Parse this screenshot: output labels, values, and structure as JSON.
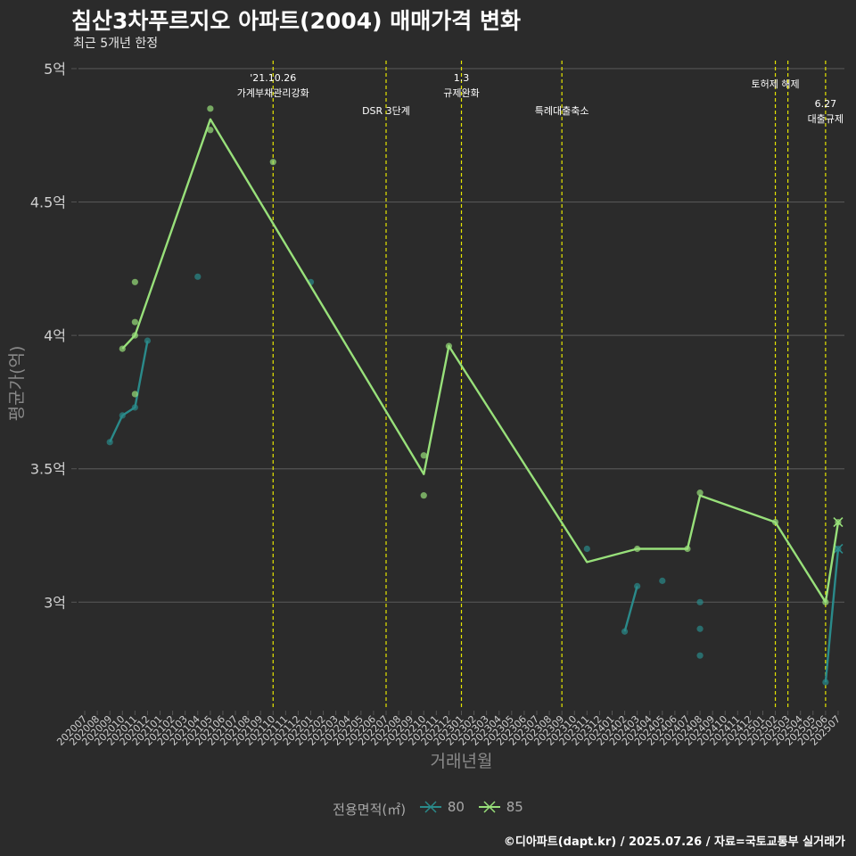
{
  "header": {
    "title": "침산3차푸르지오 아파트(2004) 매매가격 변화",
    "subtitle": "최근 5개년 한정"
  },
  "caption": "©디아파트(dapt.kr) / 2025.07.26 / 자료=국토교통부 실거래가",
  "colors": {
    "background": "#2b2b2b",
    "grid": "#555555",
    "tick_text": "#cfcfcf",
    "axis_title": "#8a8a8a",
    "event_line": "#e6e600",
    "series_80": "#2a8a8a",
    "series_85": "#98e07a"
  },
  "chart_data": {
    "type": "line",
    "title": "침산3차푸르지오 아파트(2004) 매매가격 변화",
    "subtitle": "최근 5개년 한정",
    "xlabel": "거래년월",
    "ylabel": "평균가(억)",
    "ylim": [
      2.6,
      5.05
    ],
    "yticks": [
      3,
      3.5,
      4,
      4.5,
      5
    ],
    "ytick_labels": [
      "3억",
      "3.5억",
      "4억",
      "4.5억",
      "5억"
    ],
    "x_months": [
      "202007",
      "202008",
      "202009",
      "202010",
      "202011",
      "202012",
      "202101",
      "202102",
      "202103",
      "202104",
      "202105",
      "202106",
      "202107",
      "202108",
      "202109",
      "202110",
      "202111",
      "202112",
      "202201",
      "202202",
      "202203",
      "202204",
      "202205",
      "202206",
      "202207",
      "202208",
      "202209",
      "202210",
      "202211",
      "202212",
      "202301",
      "202302",
      "202303",
      "202304",
      "202305",
      "202306",
      "202307",
      "202308",
      "202309",
      "202310",
      "202311",
      "202312",
      "202401",
      "202402",
      "202403",
      "202404",
      "202405",
      "202406",
      "202407",
      "202408",
      "202409",
      "202410",
      "202411",
      "202412",
      "202501",
      "202502",
      "202503",
      "202504",
      "202505",
      "202506",
      "202507"
    ],
    "legend_title": "전용면적(㎡)",
    "series": [
      {
        "name": "80",
        "color": "#2a8a8a",
        "line": [
          [
            "202009",
            3.6
          ],
          [
            "202010",
            3.7
          ],
          [
            "202011",
            3.73
          ],
          [
            "202012",
            3.98
          ],
          [
            "202402",
            2.89
          ],
          [
            "202403",
            3.06
          ],
          [
            "202506",
            2.7
          ],
          [
            "202507",
            3.2
          ]
        ],
        "segments": [
          [
            0,
            3
          ],
          [
            4,
            5
          ],
          [
            6,
            7
          ]
        ],
        "points": [
          [
            "202009",
            3.6
          ],
          [
            "202010",
            3.7
          ],
          [
            "202011",
            3.73
          ],
          [
            "202012",
            3.98
          ],
          [
            "202104",
            4.22
          ],
          [
            "202201",
            4.2
          ],
          [
            "202311",
            3.2
          ],
          [
            "202402",
            2.89
          ],
          [
            "202403",
            3.06
          ],
          [
            "202405",
            3.08
          ],
          [
            "202408",
            3.0
          ],
          [
            "202408",
            2.9
          ],
          [
            "202408",
            2.8
          ],
          [
            "202506",
            2.7
          ],
          [
            "202507",
            3.2
          ]
        ]
      },
      {
        "name": "85",
        "color": "#98e07a",
        "line": [
          [
            "202010",
            3.95
          ],
          [
            "202011",
            4.0
          ],
          [
            "202105",
            4.81
          ],
          [
            "202210",
            3.48
          ],
          [
            "202212",
            3.96
          ],
          [
            "202311",
            3.15
          ],
          [
            "202403",
            3.2
          ],
          [
            "202407",
            3.2
          ],
          [
            "202408",
            3.4
          ],
          [
            "202502",
            3.3
          ],
          [
            "202506",
            3.0
          ],
          [
            "202507",
            3.3
          ]
        ],
        "segments": [
          [
            0,
            11
          ]
        ],
        "points": [
          [
            "202010",
            3.95
          ],
          [
            "202011",
            3.78
          ],
          [
            "202011",
            4.0
          ],
          [
            "202011",
            4.05
          ],
          [
            "202011",
            4.2
          ],
          [
            "202105",
            4.85
          ],
          [
            "202105",
            4.77
          ],
          [
            "202110",
            4.65
          ],
          [
            "202210",
            3.55
          ],
          [
            "202210",
            3.4
          ],
          [
            "202212",
            3.96
          ],
          [
            "202403",
            3.2
          ],
          [
            "202407",
            3.2
          ],
          [
            "202408",
            3.41
          ],
          [
            "202502",
            3.3
          ],
          [
            "202506",
            3.0
          ],
          [
            "202507",
            3.3
          ]
        ]
      }
    ],
    "events": [
      {
        "month": "202110",
        "lines": [
          "'21.10.26",
          "가계부채관리강화"
        ],
        "level": 0
      },
      {
        "month": "202207",
        "lines": [
          "DSR 3단계"
        ],
        "level": 2
      },
      {
        "month": "202301",
        "lines": [
          "1.3",
          "규제완화"
        ],
        "level": 0
      },
      {
        "month": "202309",
        "lines": [
          "특례대출축소"
        ],
        "level": 2
      },
      {
        "month": "202502",
        "lines": [
          "토허제 해제"
        ],
        "level": 1
      },
      {
        "month": "202503",
        "lines": [],
        "level": 1
      },
      {
        "month": "202506",
        "lines": [
          "6.27",
          "대출규제"
        ],
        "level": 3
      }
    ]
  }
}
